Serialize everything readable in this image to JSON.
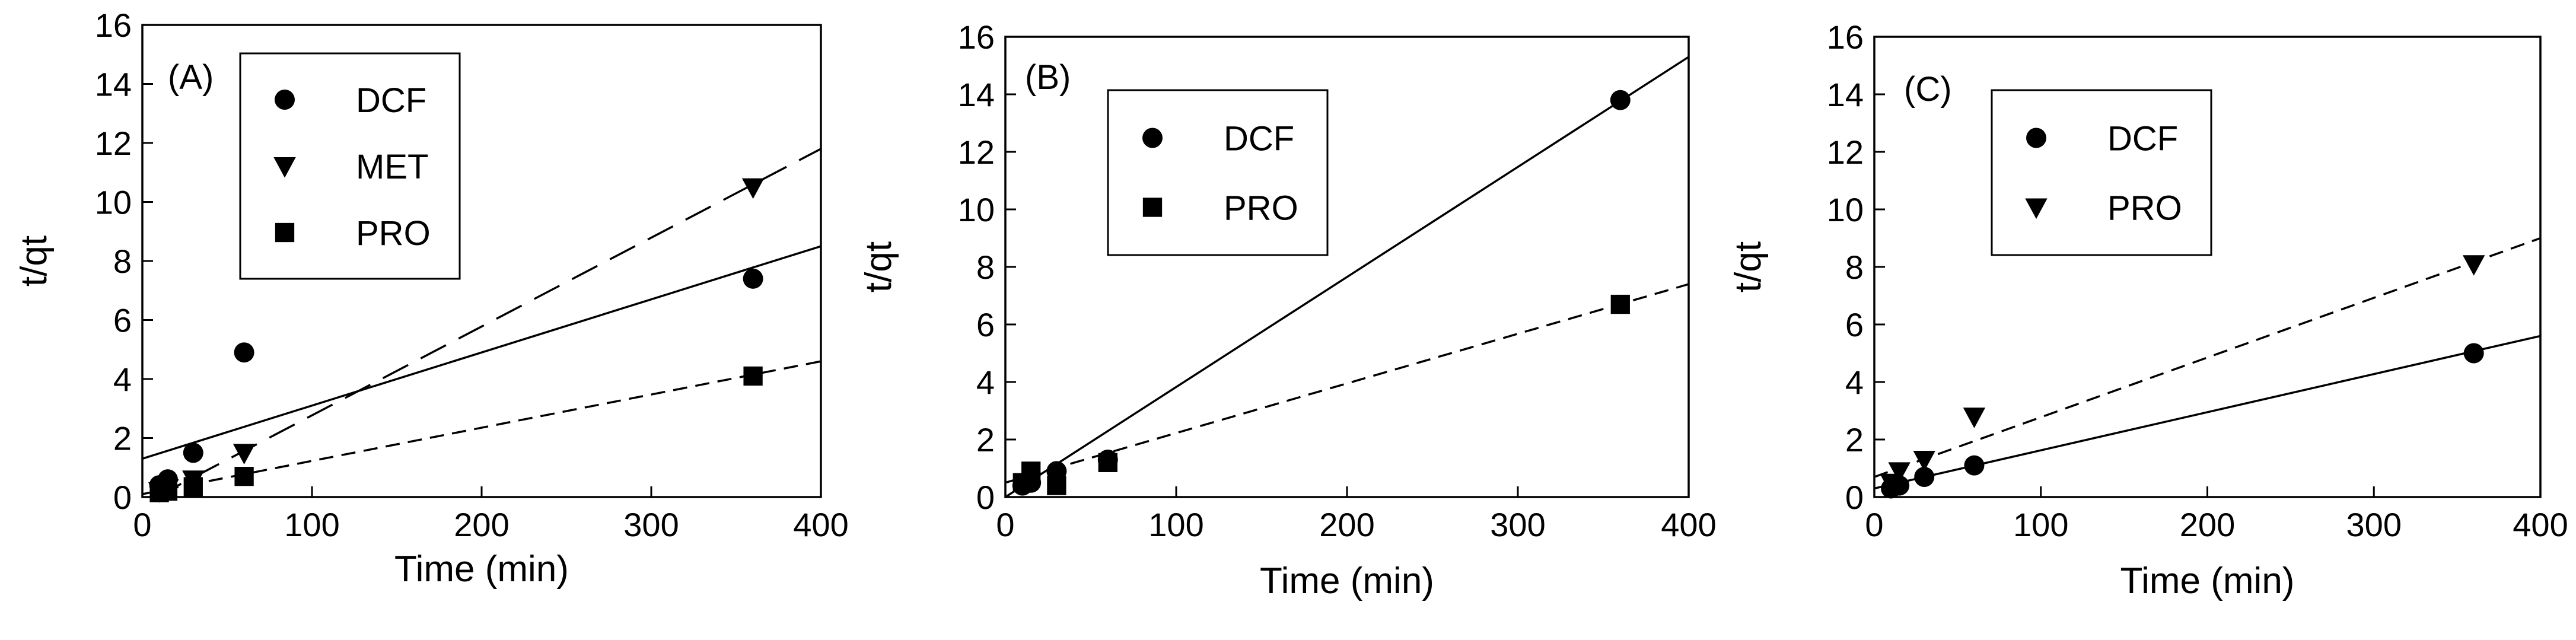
{
  "chart_data": [
    {
      "type": "scatter",
      "panel_label": "(A)",
      "xlabel": "Time (min)",
      "ylabel": "t/qt",
      "xlim": [
        0,
        400
      ],
      "ylim": [
        0,
        16
      ],
      "xticks": [
        0,
        100,
        200,
        300,
        400
      ],
      "yticks": [
        0,
        2,
        4,
        6,
        8,
        10,
        12,
        14,
        16
      ],
      "series": [
        {
          "name": "DCF",
          "marker": "circle",
          "line": "solid",
          "points": [
            [
              10,
              0.4
            ],
            [
              15,
              0.6
            ],
            [
              30,
              1.5
            ],
            [
              60,
              4.9
            ],
            [
              360,
              7.4
            ]
          ],
          "fit": [
            [
              0,
              1.3
            ],
            [
              400,
              8.5
            ]
          ]
        },
        {
          "name": "MET",
          "marker": "triangle-down",
          "line": "long-dash",
          "points": [
            [
              10,
              0.2
            ],
            [
              15,
              0.3
            ],
            [
              30,
              0.6
            ],
            [
              60,
              1.5
            ],
            [
              360,
              10.5
            ]
          ],
          "fit": [
            [
              8,
              0.0
            ],
            [
              400,
              11.8
            ]
          ]
        },
        {
          "name": "PRO",
          "marker": "square",
          "line": "short-dash",
          "points": [
            [
              10,
              0.15
            ],
            [
              15,
              0.2
            ],
            [
              30,
              0.35
            ],
            [
              60,
              0.7
            ],
            [
              360,
              4.1
            ]
          ],
          "fit": [
            [
              0,
              0.1
            ],
            [
              400,
              4.6
            ]
          ]
        }
      ]
    },
    {
      "type": "scatter",
      "panel_label": "(B)",
      "xlabel": "Time (min)",
      "ylabel": "t/qt",
      "xlim": [
        0,
        400
      ],
      "ylim": [
        0,
        16
      ],
      "xticks": [
        0,
        100,
        200,
        300,
        400
      ],
      "yticks": [
        0,
        2,
        4,
        6,
        8,
        10,
        12,
        14,
        16
      ],
      "series": [
        {
          "name": "DCF",
          "marker": "circle",
          "line": "solid",
          "points": [
            [
              10,
              0.4
            ],
            [
              15,
              0.5
            ],
            [
              30,
              0.9
            ],
            [
              60,
              1.3
            ],
            [
              360,
              13.8
            ]
          ],
          "fit": [
            [
              0,
              0.0
            ],
            [
              400,
              15.3
            ]
          ]
        },
        {
          "name": "PRO",
          "marker": "square",
          "line": "short-dash",
          "points": [
            [
              10,
              0.5
            ],
            [
              15,
              0.9
            ],
            [
              30,
              0.4
            ],
            [
              60,
              1.2
            ],
            [
              360,
              6.7
            ]
          ],
          "fit": [
            [
              0,
              0.5
            ],
            [
              400,
              7.4
            ]
          ]
        }
      ]
    },
    {
      "type": "scatter",
      "panel_label": "(C)",
      "xlabel": "Time (min)",
      "ylabel": "t/qt",
      "xlim": [
        0,
        400
      ],
      "ylim": [
        0,
        16
      ],
      "xticks": [
        0,
        100,
        200,
        300,
        400
      ],
      "yticks": [
        0,
        2,
        4,
        6,
        8,
        10,
        12,
        14,
        16
      ],
      "series": [
        {
          "name": "DCF",
          "marker": "circle",
          "line": "solid",
          "points": [
            [
              10,
              0.3
            ],
            [
              15,
              0.4
            ],
            [
              30,
              0.7
            ],
            [
              60,
              1.1
            ],
            [
              360,
              5.0
            ]
          ],
          "fit": [
            [
              0,
              0.3
            ],
            [
              400,
              5.6
            ]
          ]
        },
        {
          "name": "PRO",
          "marker": "triangle-down",
          "line": "short-dash",
          "points": [
            [
              10,
              0.5
            ],
            [
              15,
              0.9
            ],
            [
              30,
              1.3
            ],
            [
              60,
              2.8
            ],
            [
              360,
              8.1
            ]
          ],
          "fit": [
            [
              0,
              0.7
            ],
            [
              400,
              9.0
            ]
          ]
        }
      ]
    }
  ]
}
